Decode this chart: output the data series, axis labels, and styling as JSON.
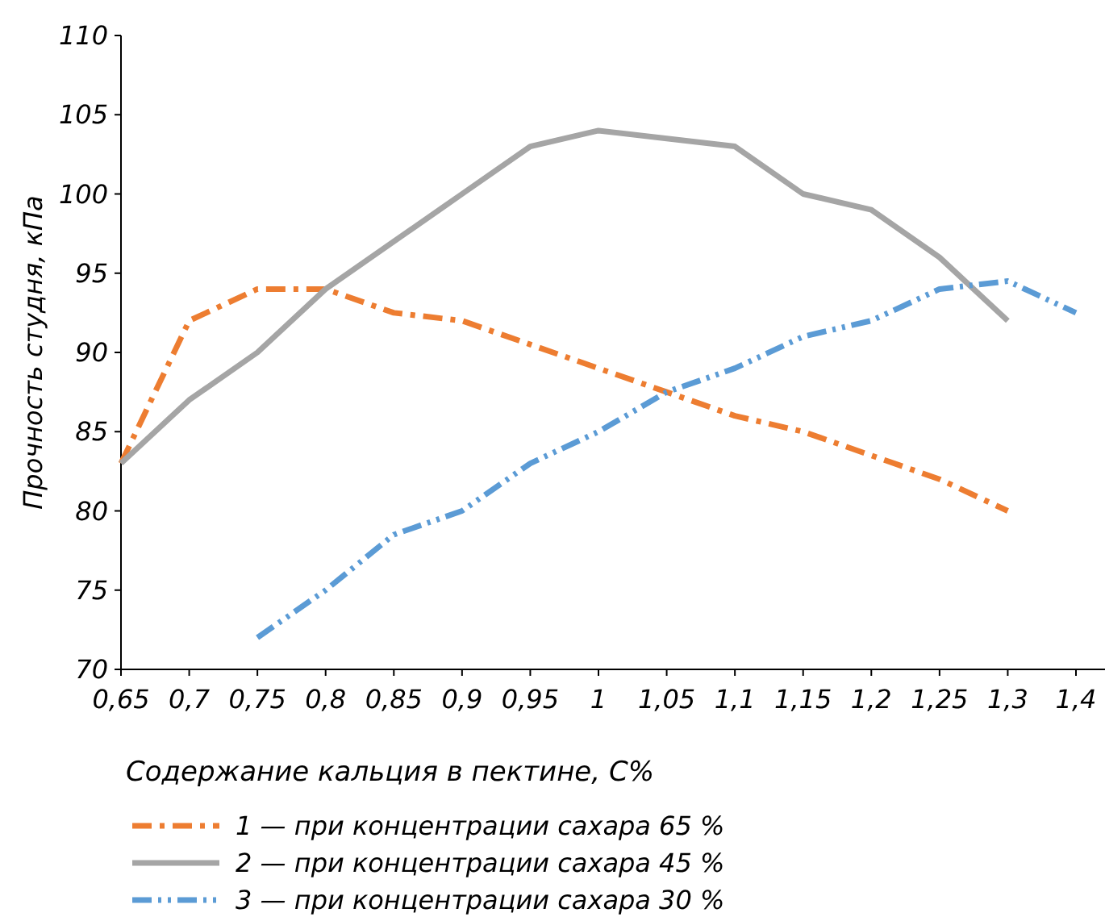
{
  "chart_data": {
    "type": "line",
    "xlabel": "Содержание кальция в пектине, С%",
    "ylabel": "Прочность студня, кПа",
    "categories": [
      "0,65",
      "0,7",
      "0,75",
      "0,8",
      "0,85",
      "0,9",
      "0,95",
      "1",
      "1,05",
      "1,1",
      "1,15",
      "1,2",
      "1,25",
      "1,3",
      "1,4"
    ],
    "ylim": [
      70,
      110
    ],
    "yticks": [
      70,
      75,
      80,
      85,
      90,
      95,
      100,
      105,
      110
    ],
    "grid": false,
    "legend": "bottom",
    "marker": "none",
    "series": [
      {
        "name": "1 — при концентрации сахара 65 %",
        "color": "#ed7d31",
        "line_style": "dashed",
        "values": [
          83,
          92,
          94,
          94,
          92.5,
          92,
          90.5,
          89,
          87.5,
          86,
          85,
          83.5,
          82,
          80,
          null
        ]
      },
      {
        "name": "2 — при концентрации сахара 45 %",
        "color": "#a5a5a5",
        "line_style": "solid",
        "values": [
          83,
          87,
          90,
          94,
          97,
          100,
          103,
          104,
          103.5,
          103,
          100,
          99,
          96,
          92,
          null
        ]
      },
      {
        "name": "3 — при концентрации сахара 30 %",
        "color": "#5b9bd5",
        "line_style": "dotted",
        "values": [
          null,
          null,
          72,
          75,
          78.5,
          80,
          83,
          85,
          87.5,
          89,
          91,
          92,
          94,
          94.5,
          92.5
        ]
      }
    ]
  }
}
